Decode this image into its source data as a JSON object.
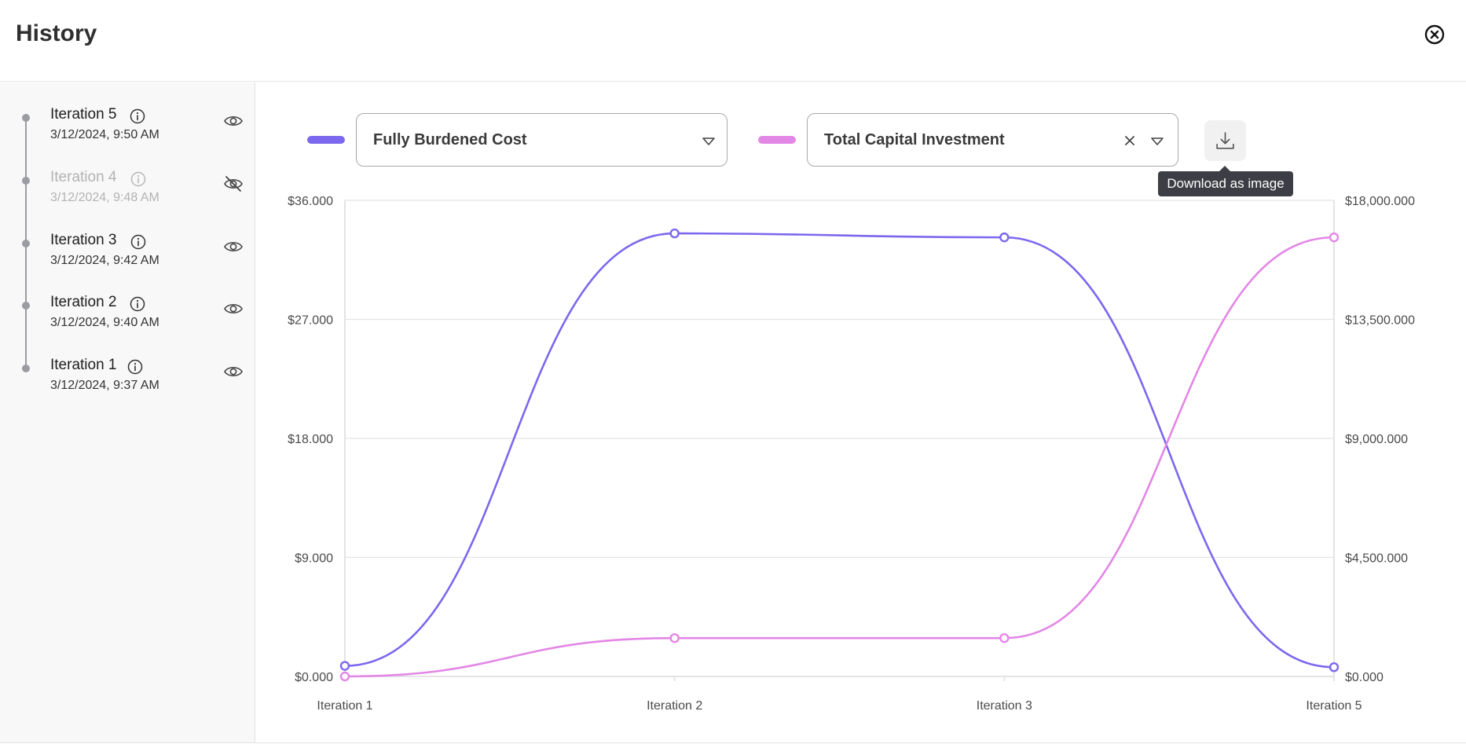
{
  "header": {
    "title": "History"
  },
  "iterations": [
    {
      "name": "Iteration 5",
      "date": "3/12/2024, 9:50 AM",
      "visible": true
    },
    {
      "name": "Iteration 4",
      "date": "3/12/2024, 9:48 AM",
      "visible": false
    },
    {
      "name": "Iteration 3",
      "date": "3/12/2024, 9:42 AM",
      "visible": true
    },
    {
      "name": "Iteration 2",
      "date": "3/12/2024, 9:40 AM",
      "visible": true
    },
    {
      "name": "Iteration 1",
      "date": "3/12/2024, 9:37 AM",
      "visible": true
    }
  ],
  "toolbar": {
    "metric1": "Fully Burdened Cost",
    "metric2": "Total Capital Investment",
    "download_tooltip": "Download as image"
  },
  "colors": {
    "series1": "#7b68ee",
    "series2": "#e387e6",
    "grid": "#e4e4e4"
  },
  "chart_data": {
    "type": "line",
    "categories": [
      "Iteration 1",
      "Iteration 2",
      "Iteration 3",
      "Iteration 5"
    ],
    "series": [
      {
        "name": "Fully Burdened Cost",
        "axis": "left",
        "values": [
          800,
          33500,
          33200,
          700
        ]
      },
      {
        "name": "Total Capital Investment",
        "axis": "right",
        "values": [
          0,
          1450000,
          1450000,
          16600000
        ]
      }
    ],
    "y_left": {
      "min": 0,
      "max": 36000,
      "ticks": [
        "$0.000",
        "$9.000",
        "$18.000",
        "$27.000",
        "$36.000"
      ]
    },
    "y_right": {
      "min": 0,
      "max": 18000000,
      "ticks": [
        "$0.000",
        "$4,500.000",
        "$9,000.000",
        "$13,500.000",
        "$18,000.000"
      ]
    },
    "grid": true,
    "curve": "smooth"
  }
}
